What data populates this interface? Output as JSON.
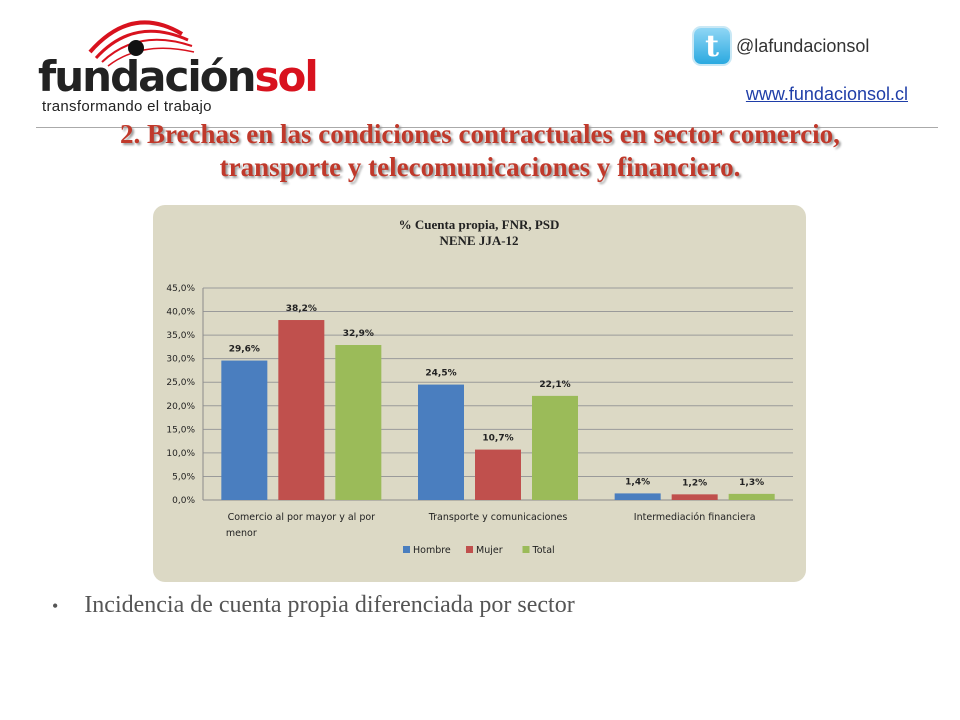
{
  "header": {
    "logo_main": "fundación",
    "logo_accent": "sol",
    "logo_tagline": "transformando el trabajo",
    "twitter_handle": "@lafundacionsol",
    "website": "www.fundacionsol.cl",
    "icons": [
      "eye-logo-icon",
      "twitter-icon"
    ]
  },
  "slide": {
    "title_line1": "2. Brechas en las condiciones contractuales en sector comercio,",
    "title_line2": "transporte  y telecomunicaciones  y financiero.",
    "bullet": "Incidencia de cuenta propia diferenciada por sector"
  },
  "colors": {
    "title": "#c0392b",
    "panel": "#dcd9c5",
    "hombre": "#4a7ebf",
    "mujer": "#c0504d",
    "total": "#9bbb59"
  },
  "chart_data": {
    "type": "bar",
    "title": "% Cuenta propia, FNR, PSD",
    "subtitle": "NENE JJA-12",
    "categories": [
      "Comercio al por mayor y al por menor",
      "Transporte y comunicaciones",
      "Intermediación financiera"
    ],
    "category_label_lines": [
      [
        "Comercio al por mayor y al por",
        "menor"
      ],
      [
        "Transporte y comunicaciones"
      ],
      [
        "Intermediación financiera"
      ]
    ],
    "series": [
      {
        "name": "Hombre",
        "values": [
          29.6,
          24.5,
          1.4
        ],
        "labels": [
          "29,6%",
          "24,5%",
          "1,4%"
        ],
        "color": "#4a7ebf"
      },
      {
        "name": "Mujer",
        "values": [
          38.2,
          10.7,
          1.2
        ],
        "labels": [
          "38,2%",
          "10,7%",
          "1,2%"
        ],
        "color": "#c0504d"
      },
      {
        "name": "Total",
        "values": [
          32.9,
          22.1,
          1.3
        ],
        "labels": [
          "32,9%",
          "22,1%",
          "1,3%"
        ],
        "color": "#9bbb59"
      }
    ],
    "yticks": [
      0,
      5,
      10,
      15,
      20,
      25,
      30,
      35,
      40,
      45
    ],
    "ytick_labels": [
      "0,0%",
      "5,0%",
      "10,0%",
      "15,0%",
      "20,0%",
      "25,0%",
      "30,0%",
      "35,0%",
      "40,0%",
      "45,0%"
    ],
    "ylim": [
      0,
      45
    ],
    "grid": true,
    "legend_position": "bottom"
  }
}
